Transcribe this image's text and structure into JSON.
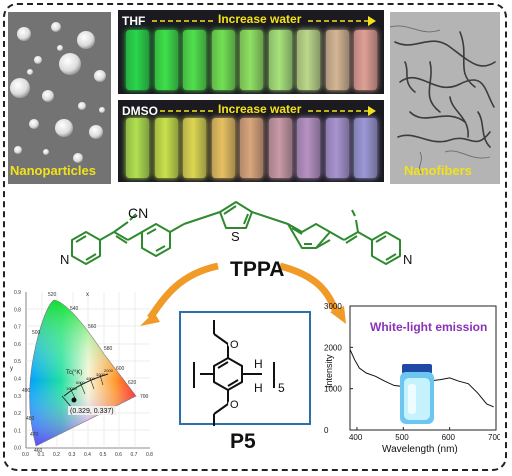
{
  "sem_left": {
    "label": "Nanoparticles"
  },
  "sem_right": {
    "label": "Nanofibers"
  },
  "vials_thf": {
    "solvent": "THF",
    "arrow_label": "Increase water",
    "colors": [
      "#2ad64a",
      "#3ee04a",
      "#50e04c",
      "#72e053",
      "#8fe062",
      "#a7e27a",
      "#bcd88a",
      "#d4b694",
      "#e0a095"
    ]
  },
  "vials_dmso": {
    "solvent": "DMSO",
    "arrow_label": "Increase water",
    "colors": [
      "#b0e050",
      "#c8e14c",
      "#dcd652",
      "#e6c062",
      "#d9a57d",
      "#c79aa6",
      "#b692c4",
      "#a894d0",
      "#9c98d6"
    ]
  },
  "molecule": {
    "name": "TPPA",
    "cn_left": "CN",
    "cn_right": "NC",
    "s": "S",
    "n_left": "N",
    "n_right": "N"
  },
  "macrocycle": {
    "name": "P5",
    "h_top": "H",
    "h_bottom": "H",
    "subscript": "5"
  },
  "cie": {
    "y_axis_label": "y",
    "x_axis_label": "x",
    "y_ticks": [
      "0.9",
      "0.8",
      "0.7",
      "0.6",
      "0.5",
      "0.4",
      "0.3",
      "0.2",
      "0.1",
      "0.0"
    ],
    "x_ticks": [
      "0.0",
      "0.1",
      "0.2",
      "0.3",
      "0.4",
      "0.5",
      "0.6",
      "0.7",
      "0.8"
    ],
    "wavelength_labels": [
      "520",
      "540",
      "560",
      "500",
      "580",
      "600",
      "620",
      "490",
      "700",
      "480",
      "470",
      "460"
    ],
    "tc_label": "Tc(°K)",
    "cct_labels": [
      "2000",
      "3000",
      "4000",
      "6000",
      "10000"
    ],
    "point_label": "(0.329, 0.337)"
  },
  "spectrum": {
    "title": "White-light emission",
    "ylabel": "Intensity",
    "xlabel": "Wavelength (nm)",
    "y_ticks": [
      "3000",
      "2000",
      "1000",
      "0"
    ],
    "x_ticks": [
      "400",
      "500",
      "600",
      "700"
    ]
  },
  "chart_data": {
    "type": "line",
    "title": "White-light emission",
    "xlabel": "Wavelength (nm)",
    "ylabel": "Intensity",
    "xlim": [
      385,
      700
    ],
    "ylim": [
      0,
      3000
    ],
    "x": [
      385,
      395,
      405,
      420,
      440,
      460,
      480,
      500,
      520,
      540,
      560,
      580,
      600,
      620,
      640,
      660,
      680,
      695
    ],
    "series": [
      {
        "values": [
          1950,
          1700,
          1500,
          1380,
          1300,
          1180,
          1080,
          1050,
          1080,
          1150,
          1190,
          1220,
          1260,
          1180,
          1120,
          900,
          630,
          560
        ]
      }
    ]
  }
}
